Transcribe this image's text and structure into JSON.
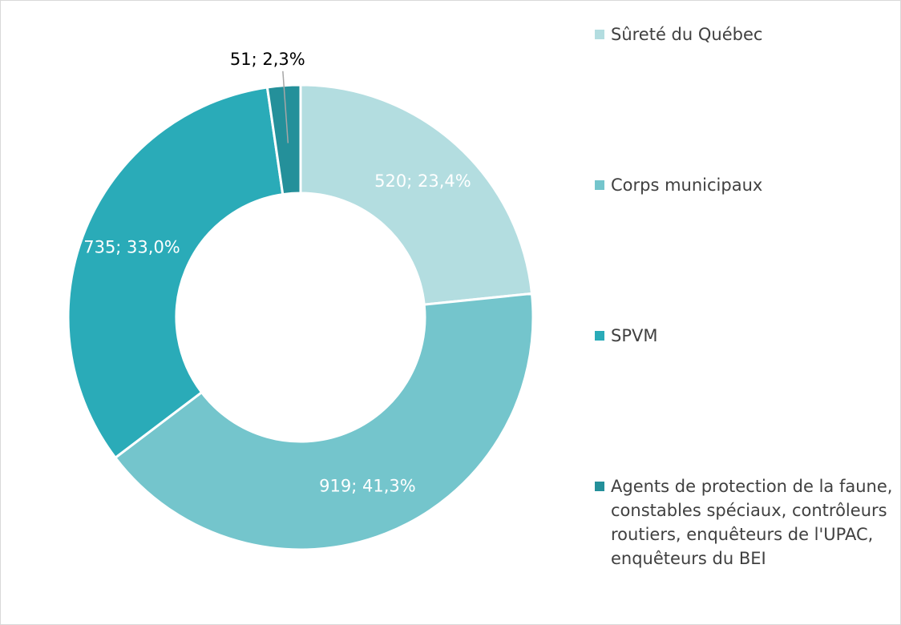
{
  "chart_data": {
    "type": "donut",
    "categories": [
      "Sûreté du Québec",
      "Corps municipaux",
      "SPVM",
      "Agents de protection de la faune, constables spéciaux, contrôleurs routiers, enquêteurs de l'UPAC, enquêteurs du BEI"
    ],
    "values": [
      520,
      919,
      735,
      51
    ],
    "value_labels": [
      "520; 23,4%",
      "919; 41,3%",
      "735; 33,0%",
      "51; 2,3%"
    ],
    "colors": [
      "#b3dde0",
      "#74c5cc",
      "#2aabb8",
      "#24909a"
    ],
    "legend": "right"
  }
}
